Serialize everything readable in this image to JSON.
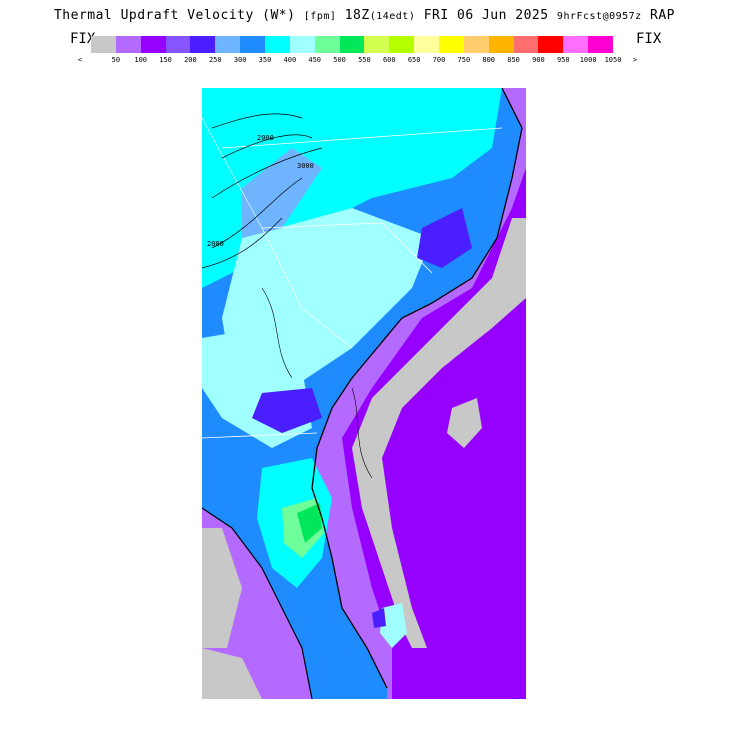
{
  "header": {
    "title_main": "Thermal Updraft Velocity (W*)",
    "title_units": "[fpm]",
    "title_time": "18Z",
    "title_local": "(14edt)",
    "title_date": "FRI 06 Jun 2025",
    "title_fcst": "9hrFcst@0957z",
    "title_model": "RAP"
  },
  "legend": {
    "left_label": "FIX",
    "right_label": "FIX",
    "ticks": [
      "<",
      "50",
      "100",
      "150",
      "200",
      "250",
      "300",
      "350",
      "400",
      "450",
      "500",
      "550",
      "600",
      "650",
      "700",
      "750",
      "800",
      "850",
      "900",
      "950",
      "1000",
      "1050",
      ">"
    ],
    "colors": [
      "#c8c8c8",
      "#b469ff",
      "#9600ff",
      "#8755ff",
      "#4b1eff",
      "#6eb4ff",
      "#1e8cff",
      "#00ffff",
      "#a0ffff",
      "#6eff9b",
      "#00e85a",
      "#d2ff50",
      "#b4ff00",
      "#ffff9b",
      "#ffff00",
      "#ffcd6e",
      "#ffb400",
      "#ff6e6e",
      "#ff0000",
      "#ff6eff",
      "#ff00d2"
    ]
  },
  "map": {
    "contour_labels": [
      "2000",
      "3000",
      "2000"
    ]
  }
}
